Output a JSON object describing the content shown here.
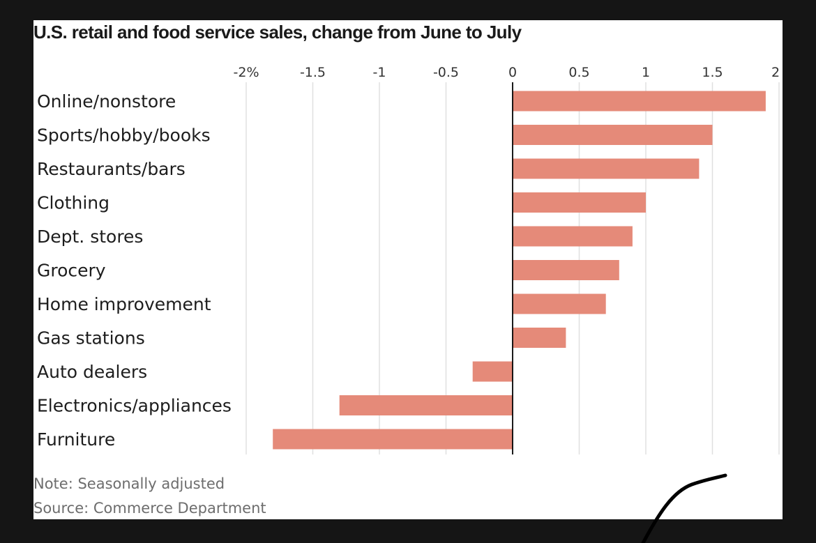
{
  "title": "U.S. retail and food service sales, change from June to July",
  "note": "Note: Seasonally adjusted",
  "source": "Source: Commerce Department",
  "colors": {
    "bar": "#e58a79",
    "background": "#ffffff",
    "frame": "#151515",
    "gridline": "#e0e0e0",
    "axis": "#000000"
  },
  "chart_data": {
    "type": "bar",
    "orientation": "horizontal",
    "title": "U.S. retail and food service sales, change from June to July",
    "xlabel": "",
    "ylabel": "",
    "xlim": [
      -2,
      2
    ],
    "grid": true,
    "x_ticks": [
      -2,
      -1.5,
      -1,
      -0.5,
      0,
      0.5,
      1,
      1.5,
      2
    ],
    "x_tick_labels": [
      "-2%",
      "-1.5",
      "-1",
      "-0.5",
      "0",
      "0.5",
      "1",
      "1.5",
      "2"
    ],
    "categories": [
      "Online/nonstore",
      "Sports/hobby/books",
      "Restaurants/bars",
      "Clothing",
      "Dept. stores",
      "Grocery",
      "Home improvement",
      "Gas stations",
      "Auto dealers",
      "Electronics/appliances",
      "Furniture"
    ],
    "values": [
      1.9,
      1.5,
      1.4,
      1.0,
      0.9,
      0.8,
      0.7,
      0.4,
      -0.3,
      -1.3,
      -1.8
    ],
    "unit": "%"
  }
}
